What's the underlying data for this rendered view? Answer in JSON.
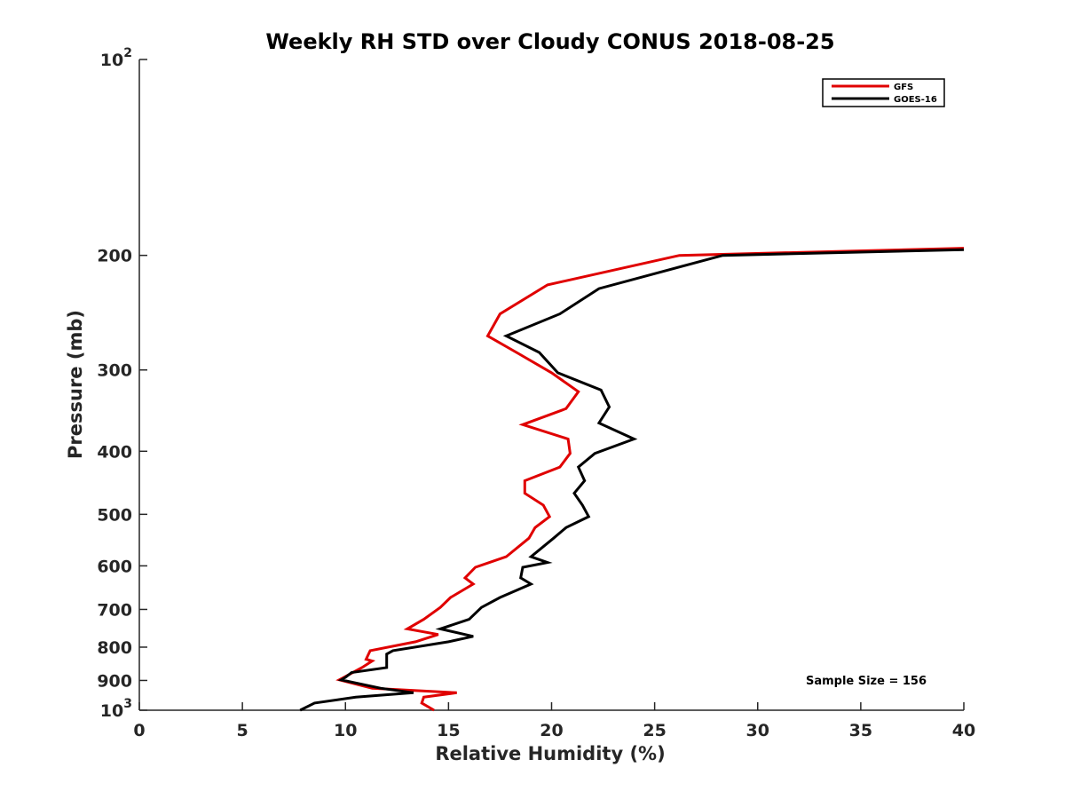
{
  "chart_data": {
    "type": "line",
    "title": "Weekly RH STD over Cloudy CONUS 2018-08-25",
    "xlabel": "Relative Humidity (%)",
    "ylabel": "Pressure (mb)",
    "xlim": [
      0,
      40
    ],
    "ylim": [
      1000,
      100
    ],
    "yscale": "log",
    "grid": false,
    "legend_position": "top-right",
    "x_ticks": [
      0,
      5,
      10,
      15,
      20,
      25,
      30,
      35,
      40
    ],
    "y_ticks": [
      100,
      200,
      300,
      400,
      500,
      600,
      700,
      800,
      900,
      1000
    ],
    "y_tick_labels": [
      {
        "base": "10",
        "exp": "2"
      },
      {
        "base": "200",
        "exp": ""
      },
      {
        "base": "300",
        "exp": ""
      },
      {
        "base": "400",
        "exp": ""
      },
      {
        "base": "500",
        "exp": ""
      },
      {
        "base": "600",
        "exp": ""
      },
      {
        "base": "700",
        "exp": ""
      },
      {
        "base": "800",
        "exp": ""
      },
      {
        "base": "900",
        "exp": ""
      },
      {
        "base": "10",
        "exp": "3"
      }
    ],
    "annotation": "Sample Size = 156",
    "series": [
      {
        "name": "GFS",
        "color": "#e00000",
        "points": [
          [
            40.0,
            195
          ],
          [
            26.2,
            200
          ],
          [
            19.8,
            222
          ],
          [
            17.5,
            246
          ],
          [
            16.9,
            266
          ],
          [
            18.3,
            282
          ],
          [
            20.0,
            303
          ],
          [
            21.3,
            324
          ],
          [
            20.7,
            344
          ],
          [
            18.6,
            364
          ],
          [
            20.8,
            383
          ],
          [
            20.9,
            403
          ],
          [
            20.4,
            423
          ],
          [
            18.7,
            444
          ],
          [
            18.7,
            464
          ],
          [
            19.6,
            484
          ],
          [
            19.9,
            504
          ],
          [
            19.2,
            524
          ],
          [
            18.9,
            544
          ],
          [
            17.8,
            581
          ],
          [
            16.3,
            603
          ],
          [
            15.8,
            626
          ],
          [
            16.2,
            640
          ],
          [
            15.1,
            671
          ],
          [
            14.6,
            695
          ],
          [
            13.8,
            725
          ],
          [
            13.0,
            750
          ],
          [
            14.5,
            765
          ],
          [
            13.4,
            785
          ],
          [
            11.2,
            810
          ],
          [
            11.0,
            835
          ],
          [
            11.3,
            840
          ],
          [
            10.8,
            860
          ],
          [
            9.7,
            898
          ],
          [
            11.3,
            925
          ],
          [
            15.4,
            940
          ],
          [
            13.8,
            955
          ],
          [
            13.7,
            975
          ],
          [
            14.3,
            1000
          ]
        ]
      },
      {
        "name": "GOES-16",
        "color": "#000000",
        "points": [
          [
            40.0,
            196
          ],
          [
            28.3,
            200
          ],
          [
            22.3,
            225
          ],
          [
            20.4,
            246
          ],
          [
            17.8,
            266
          ],
          [
            19.4,
            282
          ],
          [
            20.3,
            303
          ],
          [
            22.4,
            322
          ],
          [
            22.8,
            342
          ],
          [
            22.3,
            362
          ],
          [
            24.0,
            383
          ],
          [
            22.1,
            403
          ],
          [
            21.3,
            423
          ],
          [
            21.6,
            444
          ],
          [
            21.1,
            464
          ],
          [
            21.5,
            484
          ],
          [
            21.8,
            504
          ],
          [
            20.7,
            524
          ],
          [
            20.1,
            544
          ],
          [
            19.0,
            581
          ],
          [
            19.8,
            593
          ],
          [
            18.6,
            603
          ],
          [
            18.5,
            626
          ],
          [
            19.0,
            640
          ],
          [
            17.5,
            671
          ],
          [
            16.6,
            695
          ],
          [
            16.0,
            725
          ],
          [
            14.6,
            750
          ],
          [
            16.2,
            770
          ],
          [
            15.0,
            785
          ],
          [
            12.3,
            810
          ],
          [
            12.0,
            820
          ],
          [
            12.0,
            860
          ],
          [
            10.3,
            875
          ],
          [
            10.0,
            890
          ],
          [
            9.8,
            898
          ],
          [
            11.7,
            925
          ],
          [
            13.3,
            940
          ],
          [
            10.5,
            955
          ],
          [
            8.5,
            975
          ],
          [
            7.8,
            1000
          ]
        ]
      }
    ]
  }
}
